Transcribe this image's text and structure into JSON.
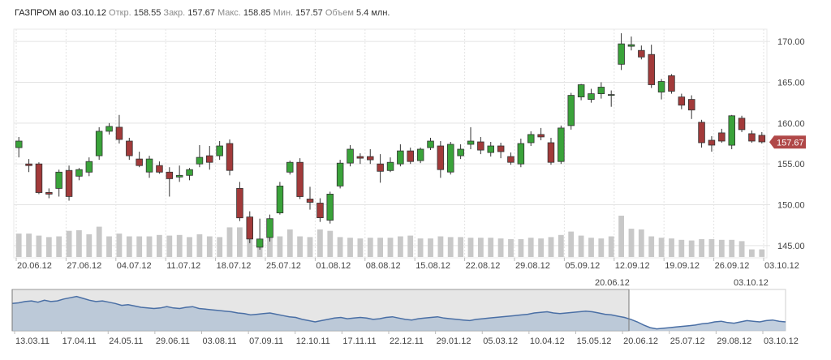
{
  "header": {
    "symbol": "ГАЗПРОМ ао",
    "date": "03.10.12",
    "open_label": "Откр.",
    "open_value": "158.55",
    "close_label": "Закр.",
    "close_value": "157.67",
    "high_label": "Макс.",
    "high_value": "158.85",
    "low_label": "Мин.",
    "low_value": "157.57",
    "volume_label": "Объем",
    "volume_value": "5.4 млн."
  },
  "colors": {
    "up": "#3aa33a",
    "down": "#a23a3a",
    "wick": "#333333",
    "volume": "#c8c8c8",
    "grid": "#e3e3e3",
    "price_badge": "#b04848",
    "navigator_line": "#4a6fa5",
    "navigator_fill": "#aebfd3",
    "navigator_window": "#e6e6e6"
  },
  "chart_data": {
    "type": "candlestick",
    "x_tick_labels": [
      "20.06.12",
      "27.06.12",
      "04.07.12",
      "11.07.12",
      "18.07.12",
      "25.07.12",
      "01.08.12",
      "08.08.12",
      "15.08.12",
      "22.08.12",
      "29.08.12",
      "05.09.12",
      "12.09.12",
      "19.09.12",
      "26.09.12",
      "03.10.12"
    ],
    "y_ticks": [
      145,
      150,
      155,
      160,
      165,
      170
    ],
    "y_tick_labels": [
      "145.00",
      "150.00",
      "155.00",
      "160.00",
      "165.00",
      "170.00"
    ],
    "ylim": [
      143.5,
      171.5
    ],
    "last_price_label": "157.67",
    "last_price": 157.67,
    "range_start_label": "20.06.12",
    "range_end_label": "03.10.12",
    "grid": true,
    "candles": [
      {
        "o": 157.0,
        "h": 158.3,
        "l": 155.8,
        "c": 157.8
      },
      {
        "o": 155.0,
        "h": 155.6,
        "l": 154.0,
        "c": 154.8
      },
      {
        "o": 155.0,
        "h": 155.2,
        "l": 151.3,
        "c": 151.5
      },
      {
        "o": 151.5,
        "h": 152.0,
        "l": 150.8,
        "c": 151.3
      },
      {
        "o": 152.0,
        "h": 154.3,
        "l": 151.0,
        "c": 154.0
      },
      {
        "o": 154.2,
        "h": 154.8,
        "l": 150.5,
        "c": 151.0
      },
      {
        "o": 153.5,
        "h": 154.5,
        "l": 153.0,
        "c": 154.3
      },
      {
        "o": 154.0,
        "h": 155.8,
        "l": 153.5,
        "c": 155.3
      },
      {
        "o": 156.0,
        "h": 159.5,
        "l": 155.5,
        "c": 159.0
      },
      {
        "o": 159.0,
        "h": 160.0,
        "l": 158.6,
        "c": 159.6
      },
      {
        "o": 159.5,
        "h": 161.0,
        "l": 157.5,
        "c": 158.0
      },
      {
        "o": 157.8,
        "h": 158.2,
        "l": 155.5,
        "c": 156.0
      },
      {
        "o": 155.6,
        "h": 156.5,
        "l": 154.6,
        "c": 154.8
      },
      {
        "o": 154.0,
        "h": 156.0,
        "l": 153.3,
        "c": 155.6
      },
      {
        "o": 154.8,
        "h": 155.3,
        "l": 153.8,
        "c": 154.0
      },
      {
        "o": 154.0,
        "h": 154.6,
        "l": 151.0,
        "c": 153.2
      },
      {
        "o": 153.4,
        "h": 154.8,
        "l": 152.8,
        "c": 153.6
      },
      {
        "o": 153.6,
        "h": 154.5,
        "l": 153.0,
        "c": 154.3
      },
      {
        "o": 155.0,
        "h": 157.3,
        "l": 154.6,
        "c": 155.8
      },
      {
        "o": 156.0,
        "h": 157.2,
        "l": 154.3,
        "c": 155.2
      },
      {
        "o": 156.0,
        "h": 157.8,
        "l": 155.5,
        "c": 157.2
      },
      {
        "o": 157.5,
        "h": 158.0,
        "l": 153.6,
        "c": 154.2
      },
      {
        "o": 152.0,
        "h": 152.8,
        "l": 148.0,
        "c": 148.4
      },
      {
        "o": 148.5,
        "h": 149.2,
        "l": 145.3,
        "c": 145.8
      },
      {
        "o": 144.8,
        "h": 148.3,
        "l": 144.5,
        "c": 145.8
      },
      {
        "o": 146.0,
        "h": 148.8,
        "l": 145.5,
        "c": 148.3
      },
      {
        "o": 149.0,
        "h": 152.8,
        "l": 148.8,
        "c": 152.3
      },
      {
        "o": 154.0,
        "h": 155.4,
        "l": 153.7,
        "c": 155.2
      },
      {
        "o": 155.2,
        "h": 155.7,
        "l": 150.7,
        "c": 151.0
      },
      {
        "o": 150.7,
        "h": 152.2,
        "l": 149.4,
        "c": 150.3
      },
      {
        "o": 150.2,
        "h": 150.8,
        "l": 147.9,
        "c": 148.4
      },
      {
        "o": 148.1,
        "h": 151.6,
        "l": 147.7,
        "c": 151.3
      },
      {
        "o": 152.3,
        "h": 155.5,
        "l": 152.0,
        "c": 155.1
      },
      {
        "o": 155.1,
        "h": 157.3,
        "l": 154.7,
        "c": 156.8
      },
      {
        "o": 155.9,
        "h": 156.3,
        "l": 155.0,
        "c": 155.7
      },
      {
        "o": 155.9,
        "h": 156.8,
        "l": 155.0,
        "c": 155.5
      },
      {
        "o": 155.0,
        "h": 156.2,
        "l": 152.7,
        "c": 154.1
      },
      {
        "o": 154.2,
        "h": 155.8,
        "l": 154.0,
        "c": 155.2
      },
      {
        "o": 155.0,
        "h": 157.4,
        "l": 154.7,
        "c": 156.6
      },
      {
        "o": 156.6,
        "h": 157.0,
        "l": 155.0,
        "c": 155.3
      },
      {
        "o": 155.4,
        "h": 157.0,
        "l": 155.1,
        "c": 156.8
      },
      {
        "o": 157.0,
        "h": 158.2,
        "l": 156.7,
        "c": 157.8
      },
      {
        "o": 157.2,
        "h": 157.8,
        "l": 153.3,
        "c": 154.3
      },
      {
        "o": 154.0,
        "h": 157.7,
        "l": 153.7,
        "c": 157.4
      },
      {
        "o": 156.0,
        "h": 157.4,
        "l": 155.6,
        "c": 156.8
      },
      {
        "o": 157.4,
        "h": 159.5,
        "l": 156.8,
        "c": 157.8
      },
      {
        "o": 157.7,
        "h": 158.3,
        "l": 156.2,
        "c": 156.7
      },
      {
        "o": 156.4,
        "h": 157.7,
        "l": 155.9,
        "c": 157.2
      },
      {
        "o": 157.2,
        "h": 157.6,
        "l": 155.7,
        "c": 156.5
      },
      {
        "o": 155.9,
        "h": 156.4,
        "l": 154.9,
        "c": 155.2
      },
      {
        "o": 155.0,
        "h": 158.1,
        "l": 154.6,
        "c": 157.5
      },
      {
        "o": 157.6,
        "h": 159.0,
        "l": 157.2,
        "c": 158.6
      },
      {
        "o": 158.6,
        "h": 159.4,
        "l": 157.9,
        "c": 158.3
      },
      {
        "o": 157.6,
        "h": 158.2,
        "l": 154.9,
        "c": 155.2
      },
      {
        "o": 155.3,
        "h": 159.7,
        "l": 155.0,
        "c": 159.4
      },
      {
        "o": 159.7,
        "h": 163.7,
        "l": 159.2,
        "c": 163.4
      },
      {
        "o": 163.2,
        "h": 164.8,
        "l": 162.8,
        "c": 164.7
      },
      {
        "o": 162.9,
        "h": 164.2,
        "l": 162.5,
        "c": 163.6
      },
      {
        "o": 163.6,
        "h": 165.0,
        "l": 163.0,
        "c": 164.4
      },
      {
        "o": 163.5,
        "h": 164.0,
        "l": 162.0,
        "c": 163.5
      },
      {
        "o": 167.2,
        "h": 171.0,
        "l": 166.5,
        "c": 169.7
      },
      {
        "o": 169.4,
        "h": 170.6,
        "l": 168.9,
        "c": 169.6
      },
      {
        "o": 168.9,
        "h": 169.5,
        "l": 167.8,
        "c": 168.1
      },
      {
        "o": 168.4,
        "h": 169.6,
        "l": 164.3,
        "c": 164.7
      },
      {
        "o": 163.8,
        "h": 165.4,
        "l": 162.9,
        "c": 165.1
      },
      {
        "o": 165.8,
        "h": 166.0,
        "l": 163.6,
        "c": 163.9
      },
      {
        "o": 163.2,
        "h": 163.6,
        "l": 161.7,
        "c": 162.2
      },
      {
        "o": 162.9,
        "h": 163.4,
        "l": 160.5,
        "c": 161.6
      },
      {
        "o": 160.1,
        "h": 160.4,
        "l": 157.0,
        "c": 157.6
      },
      {
        "o": 157.9,
        "h": 158.4,
        "l": 156.5,
        "c": 157.3
      },
      {
        "o": 158.8,
        "h": 159.3,
        "l": 157.6,
        "c": 157.8
      },
      {
        "o": 157.3,
        "h": 161.0,
        "l": 156.8,
        "c": 160.9
      },
      {
        "o": 160.6,
        "h": 160.9,
        "l": 158.9,
        "c": 159.2
      },
      {
        "o": 158.7,
        "h": 159.1,
        "l": 157.6,
        "c": 157.8
      },
      {
        "o": 158.5,
        "h": 158.9,
        "l": 157.5,
        "c": 157.7
      }
    ],
    "volume": [
      34,
      34,
      31,
      29,
      30,
      38,
      39,
      33,
      44,
      30,
      34,
      30,
      30,
      30,
      32,
      31,
      32,
      29,
      33,
      30,
      29,
      43,
      43,
      40,
      26,
      30,
      30,
      40,
      30,
      29,
      40,
      38,
      29,
      28,
      27,
      28,
      28,
      28,
      30,
      31,
      27,
      27,
      30,
      29,
      29,
      28,
      28,
      28,
      27,
      26,
      26,
      28,
      27,
      29,
      32,
      37,
      31,
      28,
      27,
      30,
      60,
      41,
      40,
      30,
      28,
      27,
      25,
      24,
      26,
      26,
      25,
      25,
      23,
      11,
      11
    ],
    "volume_max": 60,
    "navigator": {
      "x_tick_labels": [
        "13.03.11",
        "17.04.11",
        "24.05.11",
        "29.06.11",
        "03.08.11",
        "07.09.11",
        "12.10.11",
        "17.11.11",
        "22.12.11",
        "29.01.12",
        "05.03.12",
        "10.04.12",
        "15.05.12",
        "20.06.12",
        "25.07.12",
        "29.08.12",
        "03.10.12"
      ],
      "ylim": [
        140,
        205
      ],
      "series": [
        183,
        184,
        186,
        187,
        185,
        188,
        186,
        187,
        190,
        192,
        194,
        191,
        188,
        186,
        187,
        185,
        183,
        180,
        181,
        179,
        177,
        176,
        175,
        176,
        178,
        176,
        175,
        177,
        178,
        175,
        174,
        173,
        172,
        171,
        170,
        168,
        167,
        165,
        166,
        167,
        168,
        166,
        164,
        162,
        161,
        158,
        156,
        154,
        156,
        158,
        160,
        161,
        159,
        160,
        161,
        160,
        158,
        159,
        161,
        162,
        160,
        158,
        157,
        159,
        160,
        161,
        162,
        160,
        159,
        158,
        157,
        156,
        158,
        159,
        160,
        161,
        162,
        163,
        164,
        165,
        166,
        168,
        169,
        170,
        168,
        167,
        168,
        169,
        170,
        171,
        170,
        168,
        166,
        165,
        163,
        161,
        158,
        154,
        149,
        145,
        143,
        144,
        145,
        146,
        147,
        148,
        149,
        151,
        152,
        154,
        155,
        153,
        152,
        154,
        156,
        155,
        154,
        156,
        157,
        155,
        154
      ]
    }
  }
}
